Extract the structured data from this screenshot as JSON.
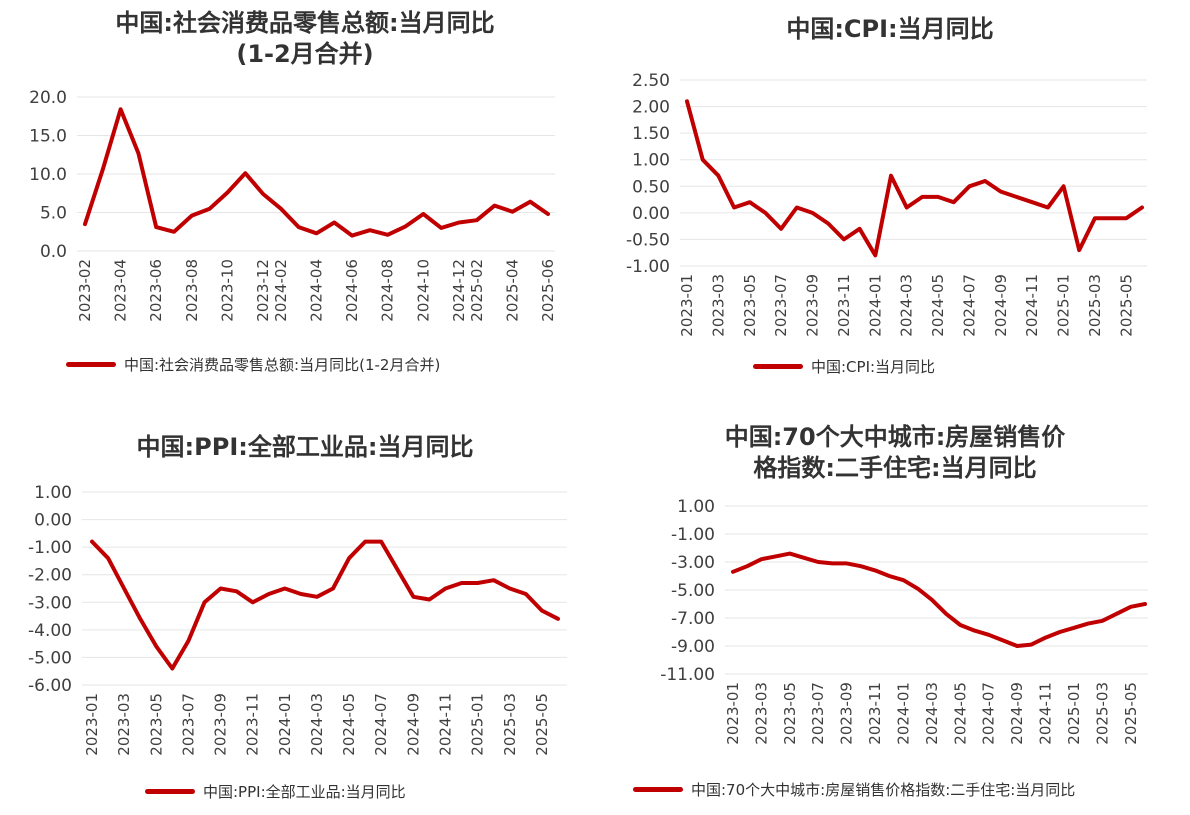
{
  "chart_data": [
    {
      "type": "line",
      "title_line1": "中国:社会消费品零售总额:当月同比",
      "title_line2": "(1-2月合并)",
      "series": [
        {
          "name": "中国:社会消费品零售总额:当月同比(1-2月合并)",
          "color": "#c00000",
          "x": [
            "2023-02",
            "2023-03",
            "2023-04",
            "2023-05",
            "2023-06",
            "2023-07",
            "2023-08",
            "2023-09",
            "2023-10",
            "2023-11",
            "2023-12",
            "2024-02",
            "2024-03",
            "2024-04",
            "2024-05",
            "2024-06",
            "2024-07",
            "2024-08",
            "2024-09",
            "2024-10",
            "2024-11",
            "2024-12",
            "2025-02",
            "2025-03",
            "2025-04",
            "2025-05",
            "2025-06"
          ],
          "values": [
            3.5,
            10.6,
            18.4,
            12.7,
            3.1,
            2.5,
            4.6,
            5.5,
            7.6,
            10.1,
            7.4,
            5.5,
            3.1,
            2.3,
            3.7,
            2.0,
            2.7,
            2.1,
            3.2,
            4.8,
            3.0,
            3.7,
            4.0,
            5.9,
            5.1,
            6.4,
            4.8
          ]
        }
      ],
      "x_ticks": [
        "2023-02",
        "2023-04",
        "2023-06",
        "2023-08",
        "2023-10",
        "2023-12",
        "2024-02",
        "2024-04",
        "2024-06",
        "2024-08",
        "2024-10",
        "2024-12",
        "2025-02",
        "2025-04",
        "2025-06"
      ],
      "y_ticks": [
        "0.0",
        "5.0",
        "10.0",
        "15.0",
        "20.0"
      ],
      "ylim": [
        0,
        20
      ],
      "grid": true,
      "legend_position": "bottom"
    },
    {
      "type": "line",
      "title_line1": "中国:CPI:当月同比",
      "title_line2": "",
      "series": [
        {
          "name": "中国:CPI:当月同比",
          "color": "#c00000",
          "x": [
            "2023-01",
            "2023-02",
            "2023-03",
            "2023-04",
            "2023-05",
            "2023-06",
            "2023-07",
            "2023-08",
            "2023-09",
            "2023-10",
            "2023-11",
            "2023-12",
            "2024-01",
            "2024-02",
            "2024-03",
            "2024-04",
            "2024-05",
            "2024-06",
            "2024-07",
            "2024-08",
            "2024-09",
            "2024-10",
            "2024-11",
            "2024-12",
            "2025-01",
            "2025-02",
            "2025-03",
            "2025-04",
            "2025-05",
            "2025-06"
          ],
          "values": [
            2.1,
            1.0,
            0.7,
            0.1,
            0.2,
            0.0,
            -0.3,
            0.1,
            0.0,
            -0.2,
            -0.5,
            -0.3,
            -0.8,
            0.7,
            0.1,
            0.3,
            0.3,
            0.2,
            0.5,
            0.6,
            0.4,
            0.3,
            0.2,
            0.1,
            0.5,
            -0.7,
            -0.1,
            -0.1,
            -0.1,
            0.1
          ]
        }
      ],
      "x_ticks": [
        "2023-01",
        "2023-03",
        "2023-05",
        "2023-07",
        "2023-09",
        "2023-11",
        "2024-01",
        "2024-03",
        "2024-05",
        "2024-07",
        "2024-09",
        "2024-11",
        "2025-01",
        "2025-03",
        "2025-05"
      ],
      "y_ticks": [
        "-1.00",
        "-0.50",
        "0.00",
        "0.50",
        "1.00",
        "1.50",
        "2.00",
        "2.50"
      ],
      "ylim": [
        -1,
        2.5
      ],
      "grid": true,
      "legend_position": "bottom"
    },
    {
      "type": "line",
      "title_line1": "中国:PPI:全部工业品:当月同比",
      "title_line2": "",
      "series": [
        {
          "name": "中国:PPI:全部工业品:当月同比",
          "color": "#c00000",
          "x": [
            "2023-01",
            "2023-02",
            "2023-03",
            "2023-04",
            "2023-05",
            "2023-06",
            "2023-07",
            "2023-08",
            "2023-09",
            "2023-10",
            "2023-11",
            "2023-12",
            "2024-01",
            "2024-02",
            "2024-03",
            "2024-04",
            "2024-05",
            "2024-06",
            "2024-07",
            "2024-08",
            "2024-09",
            "2024-10",
            "2024-11",
            "2024-12",
            "2025-01",
            "2025-02",
            "2025-03",
            "2025-04",
            "2025-05",
            "2025-06"
          ],
          "values": [
            -0.8,
            -1.4,
            -2.5,
            -3.6,
            -4.6,
            -5.4,
            -4.4,
            -3.0,
            -2.5,
            -2.6,
            -3.0,
            -2.7,
            -2.5,
            -2.7,
            -2.8,
            -2.5,
            -1.4,
            -0.8,
            -0.8,
            -1.8,
            -2.8,
            -2.9,
            -2.5,
            -2.3,
            -2.3,
            -2.2,
            -2.5,
            -2.7,
            -3.3,
            -3.6
          ]
        }
      ],
      "x_ticks": [
        "2023-01",
        "2023-03",
        "2023-05",
        "2023-07",
        "2023-09",
        "2023-11",
        "2024-01",
        "2024-03",
        "2024-05",
        "2024-07",
        "2024-09",
        "2024-11",
        "2025-01",
        "2025-03",
        "2025-05"
      ],
      "y_ticks": [
        "-6.00",
        "-5.00",
        "-4.00",
        "-3.00",
        "-2.00",
        "-1.00",
        "0.00",
        "1.00"
      ],
      "ylim": [
        -6,
        1
      ],
      "grid": true,
      "legend_position": "bottom"
    },
    {
      "type": "line",
      "title_line1": "中国:70个大中城市:房屋销售价",
      "title_line2": "格指数:二手住宅:当月同比",
      "series": [
        {
          "name": "中国:70个大中城市:房屋销售价格指数:二手住宅:当月同比",
          "color": "#c00000",
          "x": [
            "2023-01",
            "2023-02",
            "2023-03",
            "2023-04",
            "2023-05",
            "2023-06",
            "2023-07",
            "2023-08",
            "2023-09",
            "2023-10",
            "2023-11",
            "2023-12",
            "2024-01",
            "2024-02",
            "2024-03",
            "2024-04",
            "2024-05",
            "2024-06",
            "2024-07",
            "2024-08",
            "2024-09",
            "2024-10",
            "2024-11",
            "2024-12",
            "2025-01",
            "2025-02",
            "2025-03",
            "2025-04",
            "2025-05",
            "2025-06"
          ],
          "values": [
            -3.7,
            -3.3,
            -2.8,
            -2.6,
            -2.4,
            -2.7,
            -3.0,
            -3.1,
            -3.1,
            -3.3,
            -3.6,
            -4.0,
            -4.3,
            -4.9,
            -5.7,
            -6.7,
            -7.5,
            -7.9,
            -8.2,
            -8.6,
            -9.0,
            -8.9,
            -8.4,
            -8.0,
            -7.7,
            -7.4,
            -7.2,
            -6.7,
            -6.2,
            -6.0
          ]
        }
      ],
      "x_ticks": [
        "2023-01",
        "2023-03",
        "2023-05",
        "2023-07",
        "2023-09",
        "2023-11",
        "2024-01",
        "2024-03",
        "2024-05",
        "2024-07",
        "2024-09",
        "2024-11",
        "2025-01",
        "2025-03",
        "2025-05"
      ],
      "y_ticks": [
        "-11.00",
        "-9.00",
        "-7.00",
        "-5.00",
        "-3.00",
        "-1.00",
        "1.00"
      ],
      "ylim": [
        -11,
        1
      ],
      "grid": true,
      "legend_position": "bottom"
    }
  ]
}
